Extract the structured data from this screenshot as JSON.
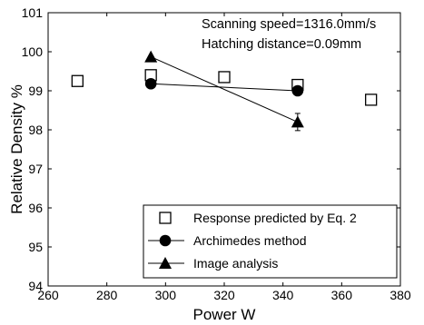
{
  "chart_data": {
    "type": "scatter",
    "annotations": [
      "Scanning speed=1316.0mm/s",
      "Hatching distance=0.09mm"
    ],
    "xlabel": "Power W",
    "ylabel": "Relative Density %",
    "xlim": [
      260,
      380
    ],
    "ylim": [
      94,
      101
    ],
    "xticks": [
      260,
      280,
      300,
      320,
      340,
      360,
      380
    ],
    "yticks": [
      94,
      95,
      96,
      97,
      98,
      99,
      100,
      101
    ],
    "grid": false,
    "legend_position": "bottom-right",
    "series": [
      {
        "name": "Response predicted by Eq. 2",
        "marker": "open-square",
        "line": false,
        "x": [
          270,
          295,
          320,
          345,
          370
        ],
        "y": [
          99.25,
          99.4,
          99.35,
          99.15,
          98.77
        ]
      },
      {
        "name": "Archimedes method",
        "marker": "filled-circle",
        "line": true,
        "x": [
          295,
          345
        ],
        "y": [
          99.18,
          99.0
        ]
      },
      {
        "name": "Image analysis",
        "marker": "filled-triangle",
        "line": true,
        "x": [
          295,
          345
        ],
        "y": [
          99.87,
          98.2
        ],
        "error": [
          0,
          0.22
        ]
      }
    ]
  }
}
